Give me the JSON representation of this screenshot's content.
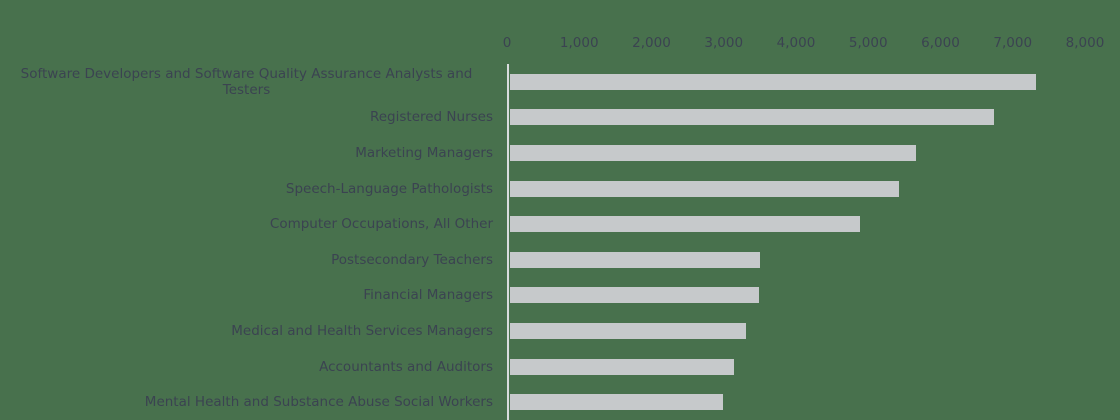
{
  "chart_data": {
    "type": "bar",
    "orientation": "horizontal",
    "title": "",
    "categories": [
      "Software Developers and Software Quality Assurance Analysts and Testers",
      "Registered Nurses",
      "Marketing Managers",
      "Speech-Language Pathologists",
      "Computer Occupations, All Other",
      "Postsecondary Teachers",
      "Financial Managers",
      "Medical and Health Services Managers",
      "Accountants and Auditors",
      "Mental Health and Substance Abuse Social Workers"
    ],
    "values": [
      7310,
      6720,
      5640,
      5400,
      4860,
      3470,
      3460,
      3280,
      3110,
      2960
    ],
    "xlim": [
      0,
      8000
    ],
    "x_ticks": [
      "0",
      "1,000",
      "2,000",
      "3,000",
      "4,000",
      "5,000",
      "6,000",
      "7,000",
      "8,000"
    ],
    "x_tick_values": [
      0,
      1000,
      2000,
      3000,
      4000,
      5000,
      6000,
      7000,
      8000
    ],
    "x_axis_position": "top",
    "grid": false,
    "legend": null,
    "colors": {
      "background": "#48714d",
      "bar": "#c6c9cb",
      "text": "#3b4351",
      "axis_line": "#d9dcde"
    }
  }
}
